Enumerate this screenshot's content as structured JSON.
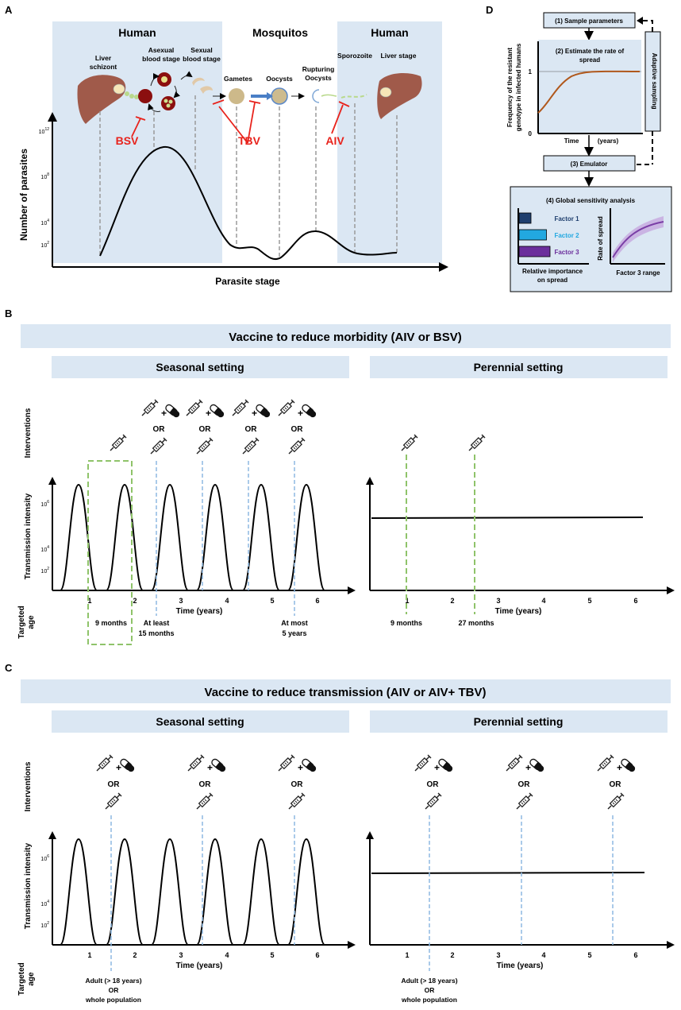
{
  "panel_letters": {
    "a": "A",
    "b": "B",
    "c": "C",
    "d": "D"
  },
  "colors": {
    "bg_band": "#dbe7f3",
    "red": "#e8231c",
    "liver": "#a05a4a",
    "green_dash": "#8fc36a",
    "blue_dash": "#8db9e2",
    "curve_brown": "#b0581c",
    "factor1": "#1f3f6e",
    "factor2": "#22a8e0",
    "factor3": "#6b2e9c",
    "purple_curve": "#7a3ea6"
  },
  "panelA": {
    "headers": {
      "human_left": "Human",
      "mosquitos": "Mosquitos",
      "human_right": "Human"
    },
    "stages": {
      "liver_schizont": [
        "Liver",
        "schizont"
      ],
      "asexual": [
        "Asexual",
        "blood stage"
      ],
      "sexual": [
        "Sexual",
        "blood stage"
      ],
      "gametes": "Gametes",
      "oocysts": "Oocysts",
      "rupturing": [
        "Rupturing",
        "Oocysts"
      ],
      "sporozoite": "Sporozoite",
      "liver_stage": "Liver stage"
    },
    "vaccines": {
      "bsv": "BSV",
      "tbv": "TBV",
      "aiv": "AIV"
    },
    "y_ticks": [
      {
        "base": "10",
        "exp": "12"
      },
      {
        "base": "10",
        "exp": "8"
      },
      {
        "base": "10",
        "exp": "4"
      },
      {
        "base": "10",
        "exp": "2"
      }
    ],
    "y_label": "Number of parasites",
    "x_label": "Parasite stage"
  },
  "panelD": {
    "box1": "(1) Sample parameters",
    "box2": [
      "(2) Estimate the rate of",
      "spread"
    ],
    "adaptive": "Adaptive sampling",
    "y_label": [
      "Frequency of the resistant",
      "genotype in infected humans"
    ],
    "y1": "1",
    "y0": "0",
    "x_label": "Time",
    "x_unit": "(years)",
    "box3": "(3) Emulator",
    "box4": "(4) Global sensitivity analysis",
    "factors": [
      {
        "name": "Factor 1",
        "value": 1
      },
      {
        "name": "Factor 2",
        "value": 2.3
      },
      {
        "name": "Factor 3",
        "value": 2.6
      }
    ],
    "bar_xlabel": [
      "Relative importance",
      "on spread"
    ],
    "rate_label": "Rate of spread",
    "range_label": "Factor 3 range"
  },
  "panelB": {
    "title": "Vaccine to reduce morbidity (AIV or BSV)",
    "seasonal": "Seasonal setting",
    "perennial": "Perennial setting",
    "interventions_label": "Interventions",
    "or": "OR",
    "plus": "+",
    "y_label": "Transmission intensity",
    "y_ticks": [
      {
        "base": "10",
        "exp": "6"
      },
      {
        "base": "10",
        "exp": "4"
      },
      {
        "base": "10",
        "exp": "2"
      }
    ],
    "x_ticks": [
      "1",
      "2",
      "3",
      "4",
      "5",
      "6"
    ],
    "x_label": "Time (years)",
    "targeted_age": [
      "Targeted",
      "age"
    ],
    "seasonal_ages": [
      "9 months",
      [
        "At least",
        "15 months"
      ],
      [
        "At most",
        "5 years"
      ]
    ],
    "perennial_ages": [
      "9 months",
      "27 months"
    ]
  },
  "panelC": {
    "title": "Vaccine to reduce transmission (AIV or AIV+ TBV)",
    "seasonal": "Seasonal setting",
    "perennial": "Perennial setting",
    "interventions_label": "Interventions",
    "or": "OR",
    "plus": "+",
    "y_label": "Transmission intensity",
    "y_ticks": [
      {
        "base": "10",
        "exp": "6"
      },
      {
        "base": "10",
        "exp": "4"
      },
      {
        "base": "10",
        "exp": "2"
      }
    ],
    "x_ticks": [
      "1",
      "2",
      "3",
      "4",
      "5",
      "6"
    ],
    "x_label": "Time (years)",
    "targeted_age": [
      "Targeted",
      "age"
    ],
    "age_text": [
      "Adult (> 18 years)",
      "OR",
      "whole population"
    ]
  }
}
